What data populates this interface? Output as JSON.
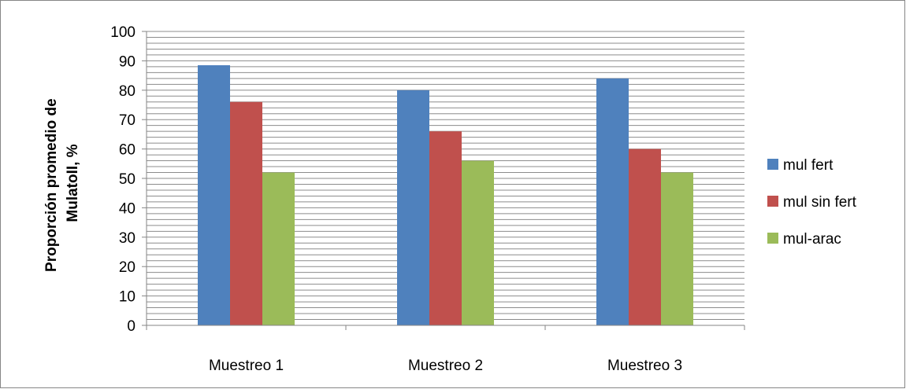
{
  "chart_data": {
    "type": "bar",
    "title": "",
    "xlabel": "",
    "ylabel": [
      "Proporción promedio de",
      "MulatoII, %"
    ],
    "categories": [
      "Muestreo 1",
      "Muestreo 2",
      "Muestreo 3"
    ],
    "series": [
      {
        "name": "mul fert",
        "values": [
          88.5,
          80,
          84
        ],
        "color": "#4f81bd"
      },
      {
        "name": "mul sin fert",
        "values": [
          76,
          66,
          60
        ],
        "color": "#c0504d"
      },
      {
        "name": "mul-arac",
        "values": [
          52,
          56,
          52
        ],
        "color": "#9bbb59"
      }
    ],
    "ylim": [
      0,
      100
    ],
    "yticks": [
      0,
      10,
      20,
      30,
      40,
      50,
      60,
      70,
      80,
      90,
      100
    ],
    "minor_grid_step": 2,
    "grid": true,
    "legend": "right",
    "colors": {
      "grid": "#8c8c8c",
      "axis": "#868686",
      "border": "#868686"
    }
  }
}
